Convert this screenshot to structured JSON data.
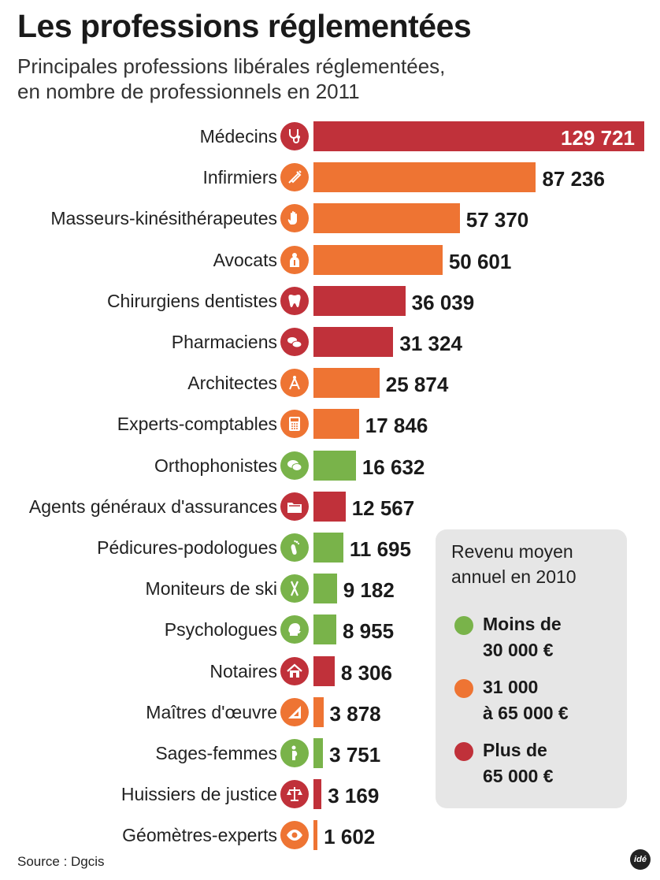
{
  "title": "Les professions réglementées",
  "subtitle": {
    "line1": "Principales professions libérales réglementées,",
    "line2": "en nombre de professionnels en 2011"
  },
  "colors": {
    "red": "#c0313a",
    "orange": "#ee7433",
    "green": "#79b34a"
  },
  "chart_data": {
    "type": "bar",
    "orientation": "horizontal",
    "title": "Les professions réglementées",
    "subtitle": "Principales professions libérales réglementées, en nombre de professionnels en 2011",
    "categories": [
      "Médecins",
      "Infirmiers",
      "Masseurs-kinésithérapeutes",
      "Avocats",
      "Chirurgiens dentistes",
      "Pharmaciens",
      "Architectes",
      "Experts-comptables",
      "Orthophonistes",
      "Agents généraux d'assurances",
      "Pédicures-podologues",
      "Moniteurs de ski",
      "Psychologues",
      "Notaires",
      "Maîtres d'œuvre",
      "Sages-femmes",
      "Huissiers de justice",
      "Géomètres-experts"
    ],
    "values": [
      129721,
      87236,
      57370,
      50601,
      36039,
      31324,
      25874,
      17846,
      16632,
      12567,
      11695,
      9182,
      8955,
      8306,
      3878,
      3751,
      3169,
      1602
    ],
    "value_labels": [
      "129 721",
      "87 236",
      "57 370",
      "50 601",
      "36 039",
      "31 324",
      "25 874",
      "17 846",
      "16 632",
      "12 567",
      "11 695",
      "9 182",
      "8 955",
      "8 306",
      "3 878",
      "3 751",
      "3 169",
      "1 602"
    ],
    "income_group": [
      "red",
      "orange",
      "orange",
      "orange",
      "red",
      "red",
      "orange",
      "orange",
      "green",
      "red",
      "green",
      "green",
      "green",
      "red",
      "orange",
      "green",
      "red",
      "orange"
    ],
    "icons": [
      "stethoscope-icon",
      "syringe-icon",
      "hand-icon",
      "lawyer-icon",
      "tooth-icon",
      "pills-icon",
      "compass-icon",
      "calculator-icon",
      "speech-bubbles-icon",
      "folder-icon",
      "foot-icon",
      "skis-icon",
      "head-icon",
      "house-icon",
      "set-square-icon",
      "pregnant-woman-icon",
      "scales-icon",
      "eye-icon"
    ],
    "xlim": [
      0,
      129721
    ],
    "grid": false,
    "legend": {
      "placement": "bottom-right",
      "title_line1": "Revenu moyen",
      "title_line2": "annuel en 2010",
      "items": [
        {
          "key": "green",
          "line1": "Moins de",
          "line2": "30 000 €"
        },
        {
          "key": "orange",
          "line1": "31 000",
          "line2": "à 65 000 €"
        },
        {
          "key": "red",
          "line1": "Plus de",
          "line2": "65 000 €"
        }
      ]
    }
  },
  "footer": {
    "source": "Source : Dgcis",
    "logo": "idé"
  }
}
